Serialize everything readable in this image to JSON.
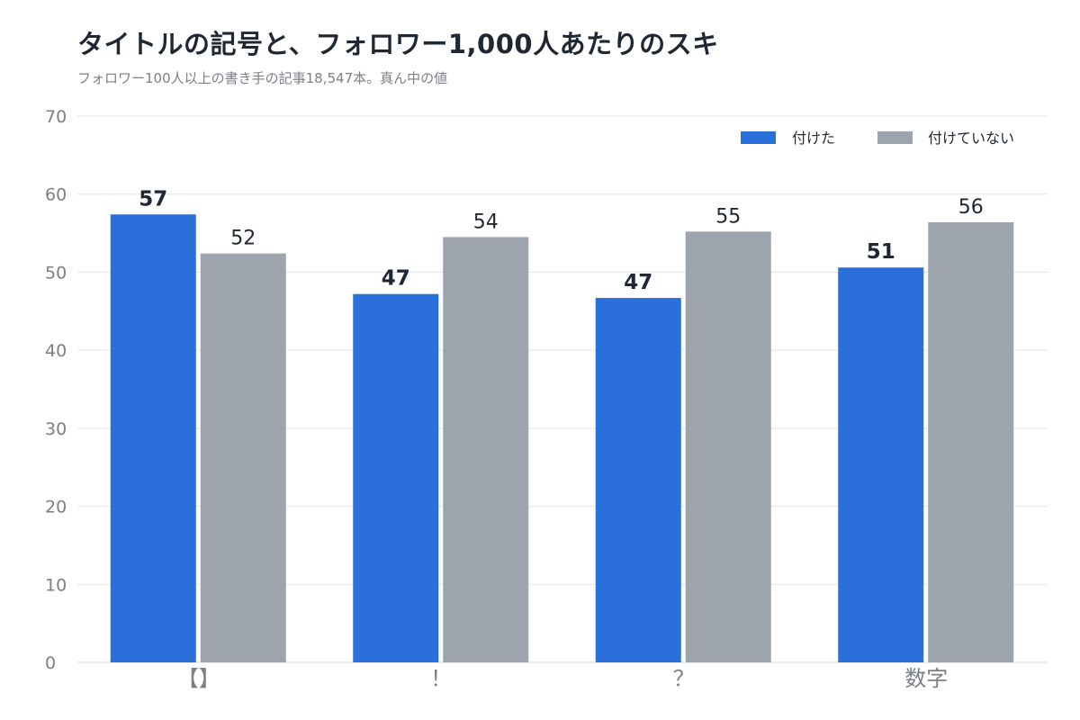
{
  "chart_data": {
    "type": "bar",
    "title": "タイトルの記号と、フォロワー1,000人あたりのスキ",
    "subtitle": "フォロワー100人以上の書き手の記事18,547本。真ん中の値",
    "categories": [
      "【】",
      "！",
      "？",
      "数字"
    ],
    "series": [
      {
        "name": "付けた",
        "values": [
          57.4,
          47.2,
          46.7,
          50.6
        ],
        "labels": [
          "57",
          "47",
          "47",
          "51"
        ],
        "color": "#2b6fdb"
      },
      {
        "name": "付けていない",
        "values": [
          52.4,
          54.5,
          55.2,
          56.4
        ],
        "labels": [
          "52",
          "54",
          "55",
          "56"
        ],
        "color": "#9ea4ad"
      }
    ],
    "ylim": [
      0,
      70
    ],
    "yticks": [
      0,
      10,
      20,
      30,
      40,
      50,
      60,
      70
    ],
    "grid": true,
    "legend_position": "top-right"
  }
}
